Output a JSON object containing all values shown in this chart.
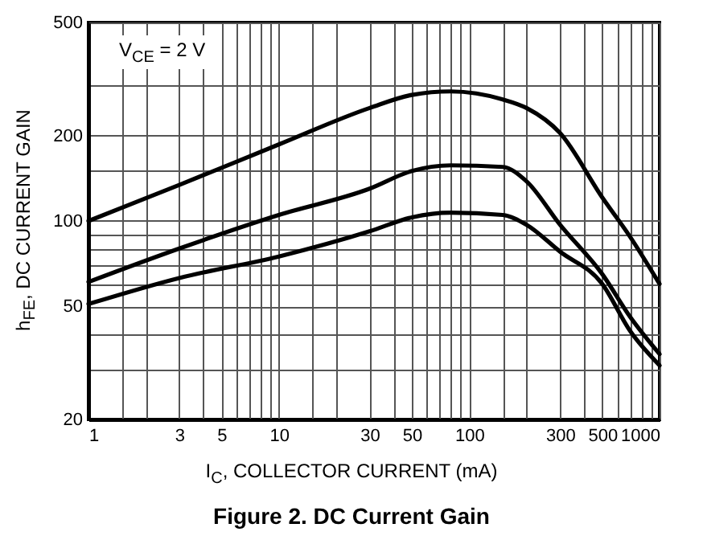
{
  "chart_data": {
    "type": "line",
    "title": "Figure 2. DC Current Gain",
    "xlabel": "I$_{C}$, COLLECTOR CURRENT (mA)",
    "ylabel": "h$_{FE}$, DC CURRENT GAIN",
    "annotations": [
      "V$_{CE}$ = 2 V"
    ],
    "log": "xy",
    "grid": true,
    "line_style": "solid",
    "marker": "none",
    "x": [
      1,
      3,
      10,
      30,
      50,
      80,
      150,
      200,
      300,
      500,
      700,
      1000
    ],
    "series": [
      {
        "color": "#000000",
        "values": [
          100,
          134,
          186,
          250,
          278,
          286,
          268,
          250,
          204,
          121,
          88,
          60
        ]
      },
      {
        "color": "#000000",
        "values": [
          61,
          80,
          105,
          130,
          150,
          157,
          155,
          138,
          97,
          65,
          46,
          34
        ]
      },
      {
        "color": "#000000",
        "values": [
          51,
          63,
          75,
          92,
          103,
          107,
          105,
          97,
          78,
          60,
          41,
          31
        ]
      }
    ],
    "xlim": [
      1,
      1000
    ],
    "xticks": [
      1,
      {
        "value": 1.5,
        "label": null
      },
      {
        "value": 2,
        "label": null
      },
      3,
      {
        "value": 4,
        "label": null
      },
      5,
      {
        "value": 6,
        "label": null
      },
      {
        "value": 7,
        "label": null
      },
      {
        "value": 8,
        "label": null
      },
      {
        "value": 9,
        "label": null
      },
      10,
      {
        "value": 15,
        "label": null
      },
      {
        "value": 20,
        "label": null
      },
      30,
      {
        "value": 40,
        "label": null
      },
      50,
      {
        "value": 60,
        "label": null
      },
      {
        "value": 70,
        "label": null
      },
      {
        "value": 80,
        "label": null
      },
      {
        "value": 90,
        "label": null
      },
      100,
      {
        "value": 150,
        "label": null
      },
      {
        "value": 200,
        "label": null
      },
      300,
      {
        "value": 400,
        "label": null
      },
      500,
      {
        "value": 600,
        "label": null
      },
      {
        "value": 700,
        "label": null
      },
      {
        "value": 800,
        "label": null
      },
      {
        "value": 900,
        "label": null
      },
      1000
    ],
    "ylim": [
      20,
      500
    ],
    "yticks": [
      20,
      {
        "value": 30,
        "label": null
      },
      {
        "value": 40,
        "label": null
      },
      50,
      {
        "value": 60,
        "label": null
      },
      {
        "value": 70,
        "label": null
      },
      {
        "value": 80,
        "label": null
      },
      {
        "value": 90,
        "label": null
      },
      100,
      {
        "value": 150,
        "label": null
      },
      200,
      {
        "value": 300,
        "label": null
      },
      500
    ]
  }
}
